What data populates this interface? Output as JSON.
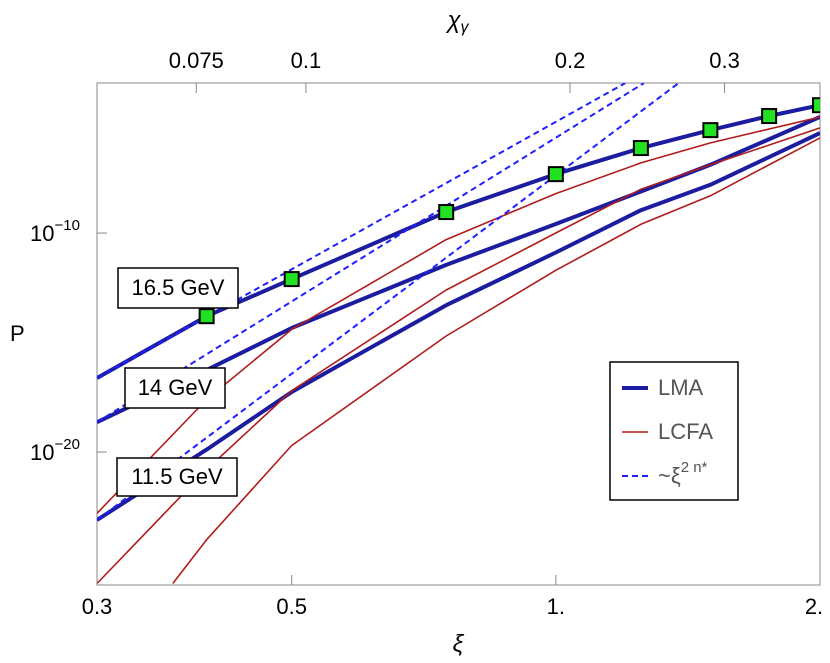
{
  "chart_data": {
    "type": "line",
    "x_label": "ξ",
    "x2_label": "χγ",
    "y_label": "P",
    "log_x": true,
    "log_y": true,
    "xlim": [
      0.3,
      2
    ],
    "xticks": [
      0.3,
      0.5,
      {
        "value": 1,
        "label": "1."
      },
      {
        "value": 2,
        "label": "2."
      }
    ],
    "x2lim": [
      0.0578,
      0.3854
    ],
    "x2ticks": [
      0.075,
      0.1,
      0.2,
      0.3
    ],
    "ylim": [
      8.5e-27,
      0.00071
    ],
    "yticks": [
      {
        "value": 1e-10,
        "label": "10−10"
      },
      {
        "value": 1e-20,
        "label": "10−20"
      }
    ],
    "legend_position": "lower right",
    "annotations": [
      "16.5 GeV",
      "14 GeV",
      "11.5 GeV"
    ],
    "series": [
      {
        "name": "LMA",
        "color": "#1c1ca0",
        "style": "thick",
        "curves": [
          {
            "x": [
              0.3,
              0.4,
              0.5,
              0.75,
              1,
              1.25,
              1.5,
              1.75,
              2
            ],
            "values": [
              2.4e-17,
              1.6e-14,
              7.9e-13,
              9.1e-10,
              4.9e-08,
              7.6e-07,
              5e-06,
              2.2e-05,
              6.9e-05
            ]
          },
          {
            "x": [
              0.3,
              0.4,
              0.5,
              0.75,
              1,
              1.25,
              1.5,
              2
            ],
            "values": [
              2.3e-19,
              5.5e-17,
              4.6e-15,
              3.5e-12,
              2.6e-10,
              7.9e-09,
              1.3e-07,
              2e-05
            ]
          },
          {
            "x": [
              0.3,
              0.4,
              0.5,
              0.75,
              1,
              1.25,
              1.5,
              2
            ],
            "values": [
              7.9e-24,
              1.3e-20,
              5.5e-18,
              5.1e-14,
              1.3e-11,
              1.1e-09,
              1.6e-08,
              3.7e-06
            ]
          }
        ]
      },
      {
        "name": "LCFA",
        "color": "#b01c1c",
        "style": "thin",
        "curves": [
          {
            "x": [
              0.3,
              0.4,
              0.5,
              0.75,
              1,
              1.25,
              1.5,
              2
            ],
            "values": [
              1.6e-23,
              2.5e-18,
              4e-15,
              5e-11,
              6.3e-09,
              1.6e-07,
              1.3e-06,
              2e-05
            ]
          },
          {
            "x": [
              0.3,
              0.4,
              0.5,
              0.75,
              1,
              1.25,
              1.5,
              2
            ],
            "values": [
              1e-26,
              1.6e-21,
              6.3e-18,
              2.5e-13,
              1e-10,
              1e-08,
              1.3e-07,
              6.3e-06
            ]
          },
          {
            "x": [
              0.366,
              0.4,
              0.5,
              0.75,
              1,
              1.25,
              1.5,
              2
            ],
            "values": [
              1e-26,
              1e-24,
              2e-20,
              2e-15,
              2e-12,
              2.5e-10,
              5e-09,
              2.2e-06
            ]
          }
        ]
      },
      {
        "name": "~ξ2 n*",
        "color": "#2020ff",
        "style": "dashed",
        "curves": [
          {
            "x": [
              0.3,
              1.2
            ],
            "values": [
              2.4e-17,
              0.0007
            ]
          },
          {
            "x": [
              0.3,
              1.26
            ],
            "values": [
              2.3e-19,
              0.0007
            ]
          },
          {
            "x": [
              0.3,
              1.38
            ],
            "values": [
              7.9e-24,
              0.0007
            ]
          }
        ]
      }
    ],
    "markers": {
      "color": "#22e022",
      "x": [
        0.4,
        0.5,
        0.75,
        1,
        1.25,
        1.5,
        1.75,
        2
      ],
      "values": [
        1.6e-14,
        7.9e-13,
        9.1e-10,
        4.9e-08,
        7.6e-07,
        5e-06,
        2.2e-05,
        6.9e-05
      ]
    }
  }
}
